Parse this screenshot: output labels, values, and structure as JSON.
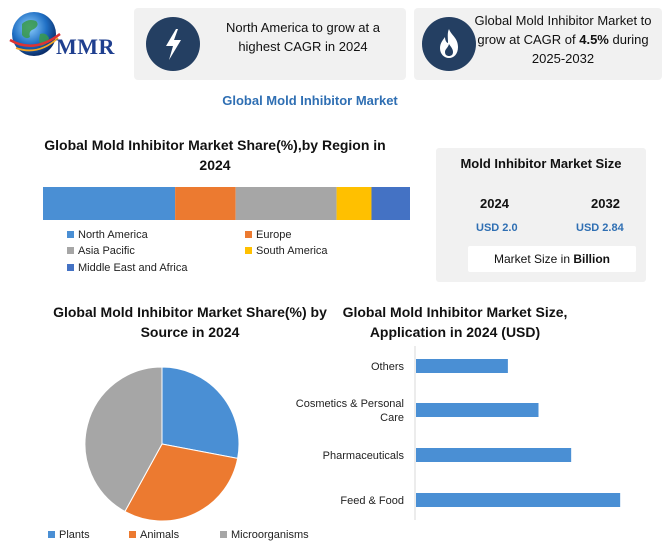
{
  "header": {
    "logo_text": "MMR",
    "card1": {
      "icon": "lightning-icon",
      "text": "North America to grow at a highest CAGR in 2024"
    },
    "card2": {
      "icon": "flame-icon",
      "text_before": "Global Mold Inhibitor Market to grow at CAGR of ",
      "highlight": "4.5%",
      "text_after": " during 2025-2032"
    }
  },
  "main_title": "Global Mold Inhibitor Market",
  "market_size": {
    "title": "Mold Inhibitor Market Size",
    "year_a": "2024",
    "value_a": "USD 2.0",
    "year_b": "2032",
    "value_b": "USD 2.84",
    "unit_prefix": "Market Size in ",
    "unit_bold": "Billion"
  },
  "chart_data": [
    {
      "type": "bar",
      "orientation": "horizontal-stacked",
      "title": "Global Mold Inhibitor Market Share(%),by Region in 2024",
      "categories": [
        "North America",
        "Europe",
        "Asia Pacific",
        "South America",
        "Middle East and Africa"
      ],
      "values": [
        36,
        16.5,
        27.5,
        9.5,
        10.5
      ],
      "colors": [
        "#4a8fd4",
        "#ec7a30",
        "#a6a6a6",
        "#ffc000",
        "#4472c4"
      ],
      "legend": "bottom"
    },
    {
      "type": "pie",
      "title": "Global Mold Inhibitor Market Share(%) by Source in 2024",
      "categories": [
        "Plants",
        "Animals",
        "Microorganisms"
      ],
      "values": [
        28,
        30,
        42
      ],
      "colors": [
        "#4a8fd4",
        "#ec7a30",
        "#a6a6a6"
      ],
      "legend": "bottom"
    },
    {
      "type": "bar",
      "orientation": "horizontal",
      "title": "Global Mold Inhibitor Market Size, Application in 2024  (USD)",
      "categories": [
        "Others",
        "Cosmetics & Personal Care",
        "Pharmaceuticals",
        "Feed & Food"
      ],
      "values": [
        0.45,
        0.6,
        0.76,
        1.0
      ],
      "xlim": [
        0,
        1.2
      ],
      "colors": [
        "#4a8fd4"
      ],
      "legend": "none"
    }
  ]
}
